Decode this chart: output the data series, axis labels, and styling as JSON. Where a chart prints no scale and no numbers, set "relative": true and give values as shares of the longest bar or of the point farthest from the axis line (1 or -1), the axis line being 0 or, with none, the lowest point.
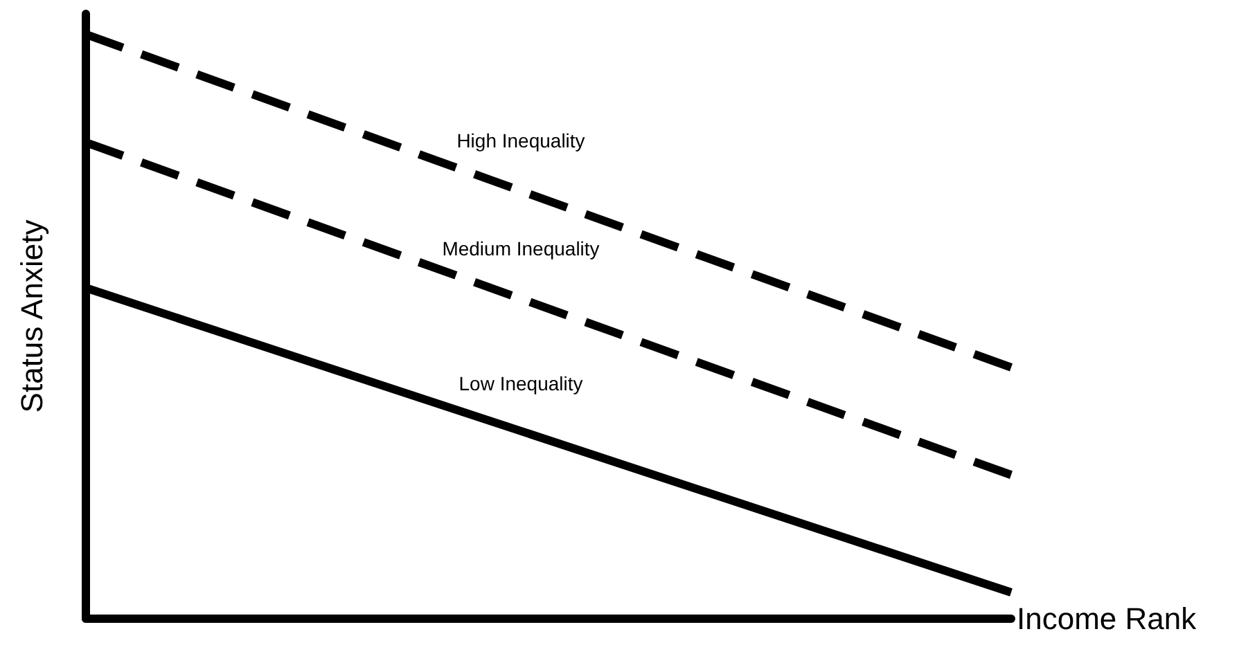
{
  "chart_data": {
    "type": "line",
    "relative": true,
    "xlabel": "Income Rank",
    "ylabel": "Status Anxiety",
    "categories": [
      null,
      null
    ],
    "legend": false,
    "grid": false,
    "marker": "none",
    "series": [
      {
        "name": "High Inequality",
        "color": "#000000",
        "line_style": "dashed",
        "values": [
          1,
          0.43
        ]
      },
      {
        "name": "Medium Inequality",
        "color": "#000000",
        "line_style": "dashed",
        "values": [
          0.815,
          0.246
        ]
      },
      {
        "name": "Low Inequality",
        "color": "#000000",
        "line_style": "solid",
        "values": [
          0.566,
          0.045
        ]
      }
    ]
  }
}
